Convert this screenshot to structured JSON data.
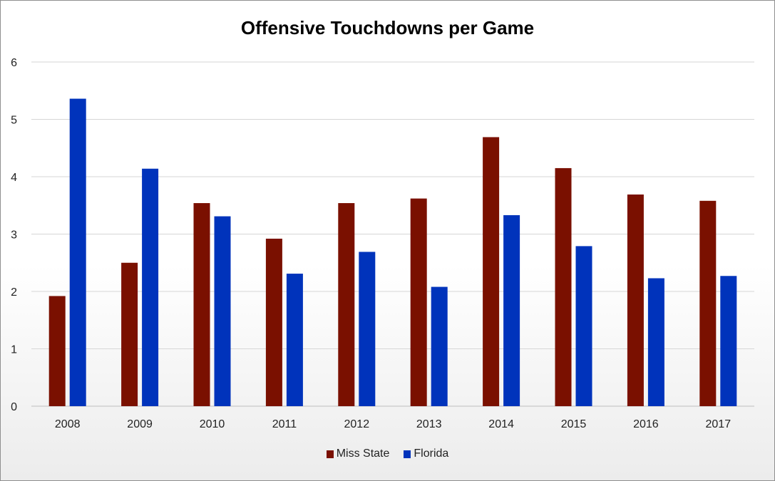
{
  "chart_data": {
    "type": "bar",
    "title": "Offensive Touchdowns per Game",
    "xlabel": "",
    "ylabel": "",
    "ylim": [
      0,
      6
    ],
    "yticks": [
      0,
      1,
      2,
      3,
      4,
      5,
      6
    ],
    "grid": true,
    "legend_position": "bottom",
    "categories": [
      "2008",
      "2009",
      "2010",
      "2011",
      "2012",
      "2013",
      "2014",
      "2015",
      "2016",
      "2017"
    ],
    "series": [
      {
        "name": "Miss State",
        "color": "#7a1000",
        "values": [
          1.92,
          2.5,
          3.54,
          2.92,
          3.54,
          3.62,
          4.69,
          4.15,
          3.69,
          3.58
        ]
      },
      {
        "name": "Florida",
        "color": "#0033bb",
        "values": [
          5.36,
          4.14,
          3.31,
          2.31,
          2.69,
          2.08,
          3.33,
          2.79,
          2.23,
          2.27
        ]
      }
    ]
  }
}
